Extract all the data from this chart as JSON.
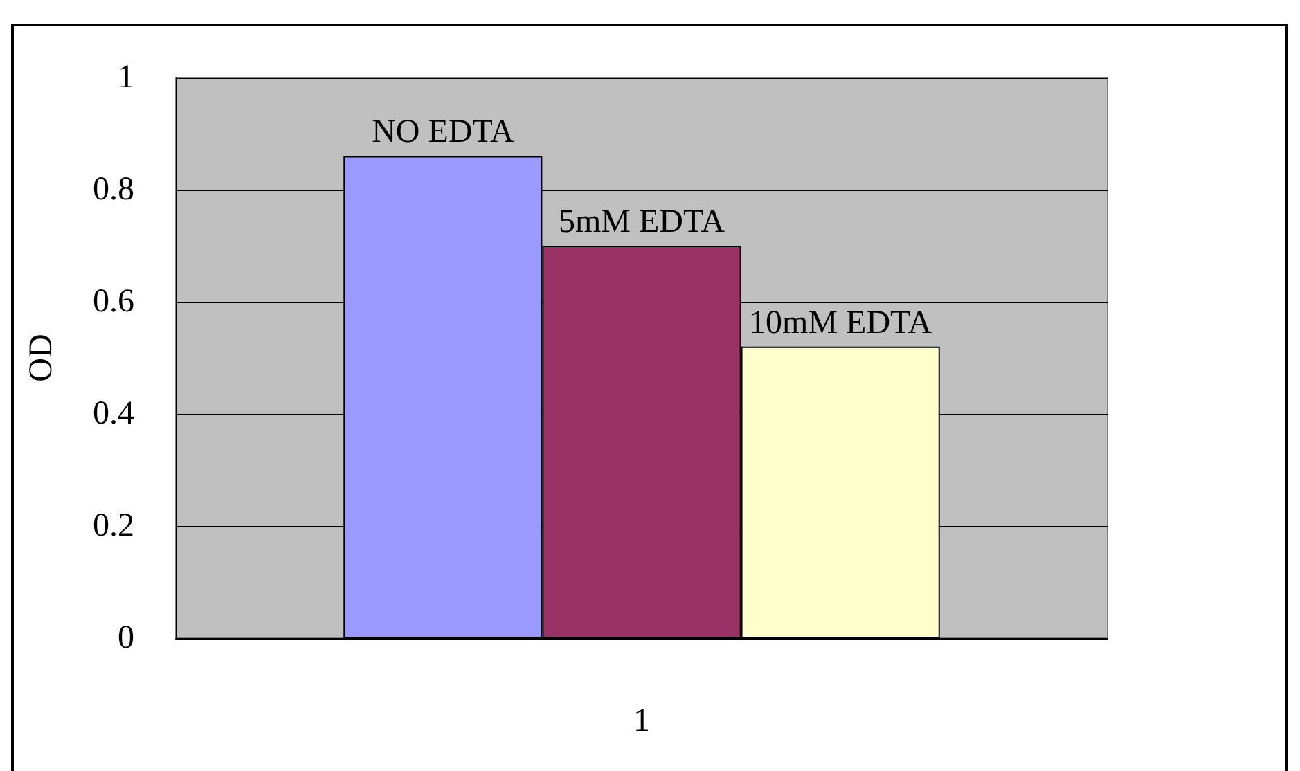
{
  "chart_data": {
    "type": "bar",
    "ylabel": "OD",
    "categories": [
      "1"
    ],
    "series": [
      {
        "name": "NO EDTA",
        "color": "#9999ff",
        "values": [
          0.86
        ]
      },
      {
        "name": "5mM EDTA",
        "color": "#993366",
        "values": [
          0.7
        ]
      },
      {
        "name": "10mM EDTA",
        "color": "#ffffcc",
        "values": [
          0.52
        ]
      }
    ],
    "ylim": [
      0,
      1
    ],
    "yticks": [
      0,
      0.2,
      0.4,
      0.6,
      0.8,
      1
    ],
    "grid": "y",
    "legend": false
  }
}
